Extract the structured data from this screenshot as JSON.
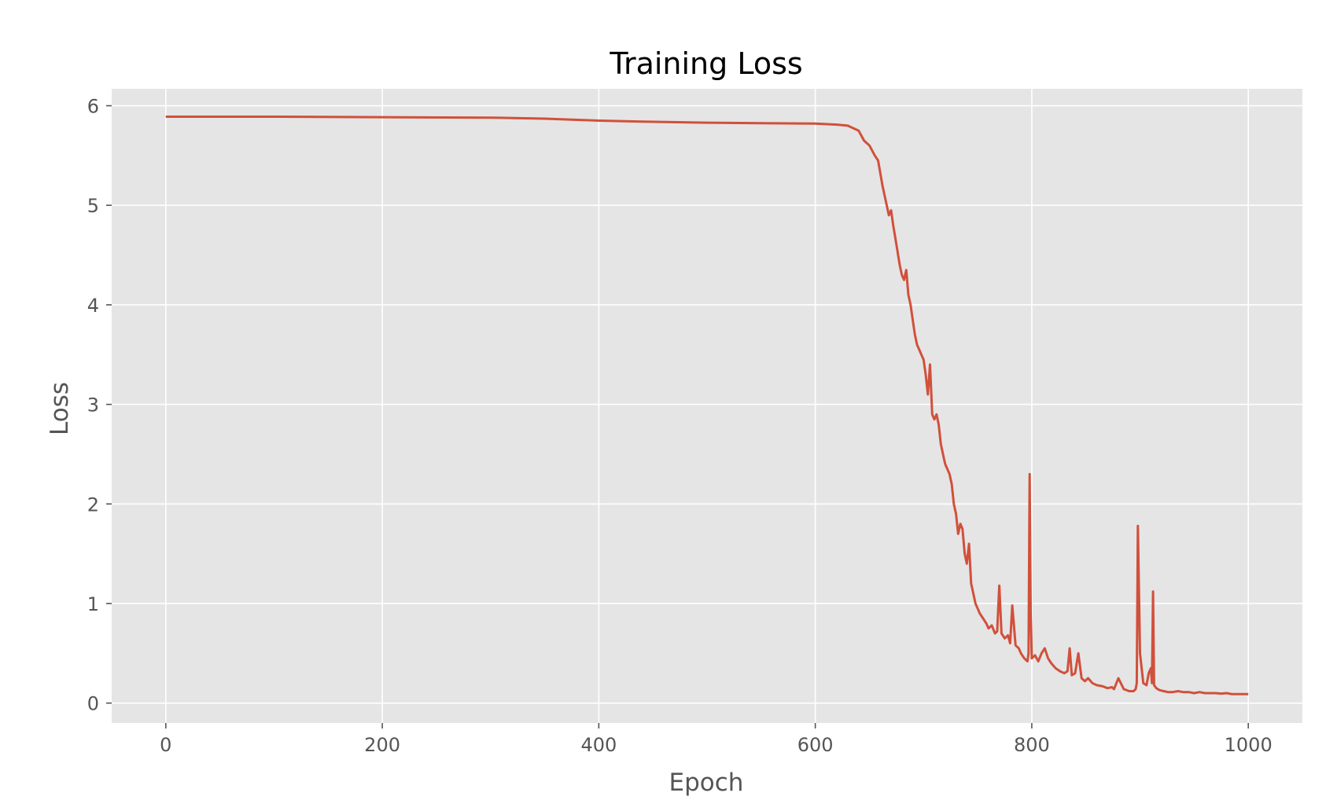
{
  "chart_data": {
    "type": "line",
    "title": "Training Loss",
    "xlabel": "Epoch",
    "ylabel": "Loss",
    "xlim": [
      -50,
      1050
    ],
    "ylim": [
      -0.2,
      6.17
    ],
    "xticks": [
      0,
      200,
      400,
      600,
      800,
      1000
    ],
    "yticks": [
      0,
      1,
      2,
      3,
      4,
      5,
      6
    ],
    "grid": true,
    "style": "ggplot",
    "colors": {
      "line": "#d1503b",
      "background": "#e5e5e5",
      "grid": "#ffffff"
    },
    "series": [
      {
        "x": [
          0,
          100,
          200,
          300,
          350,
          400,
          440,
          500,
          550,
          600,
          620,
          630,
          640,
          645,
          650,
          655,
          658,
          662,
          665,
          668,
          670,
          672,
          675,
          678,
          680,
          682,
          684,
          686,
          688,
          690,
          692,
          694,
          696,
          698,
          700,
          702,
          704,
          706,
          708,
          710,
          712,
          714,
          716,
          718,
          720,
          722,
          724,
          726,
          728,
          730,
          732,
          734,
          736,
          738,
          740,
          742,
          744,
          746,
          748,
          750,
          752,
          755,
          758,
          760,
          763,
          766,
          768,
          770,
          772,
          775,
          778,
          780,
          782,
          785,
          788,
          790,
          793,
          796,
          797,
          798,
          799,
          800,
          803,
          806,
          809,
          812,
          815,
          818,
          822,
          826,
          830,
          833,
          835,
          837,
          840,
          843,
          846,
          849,
          852,
          856,
          860,
          865,
          870,
          874,
          876,
          880,
          885,
          890,
          894,
          896,
          897,
          898,
          900,
          903,
          906,
          908,
          910,
          911,
          912,
          913,
          915,
          918,
          922,
          926,
          930,
          935,
          940,
          945,
          950,
          955,
          960,
          965,
          970,
          975,
          980,
          985,
          990,
          995,
          1000
        ],
        "y": [
          5.89,
          5.89,
          5.885,
          5.88,
          5.87,
          5.85,
          5.84,
          5.83,
          5.825,
          5.82,
          5.81,
          5.8,
          5.75,
          5.65,
          5.6,
          5.5,
          5.45,
          5.2,
          5.05,
          4.9,
          4.95,
          4.8,
          4.6,
          4.4,
          4.3,
          4.25,
          4.35,
          4.1,
          4.0,
          3.85,
          3.7,
          3.6,
          3.55,
          3.5,
          3.45,
          3.3,
          3.1,
          3.4,
          2.9,
          2.85,
          2.9,
          2.8,
          2.6,
          2.5,
          2.4,
          2.35,
          2.3,
          2.2,
          2.0,
          1.9,
          1.7,
          1.8,
          1.75,
          1.5,
          1.4,
          1.6,
          1.2,
          1.1,
          1.0,
          0.95,
          0.9,
          0.85,
          0.8,
          0.75,
          0.78,
          0.7,
          0.72,
          1.18,
          0.7,
          0.65,
          0.68,
          0.6,
          0.98,
          0.58,
          0.55,
          0.5,
          0.45,
          0.42,
          0.5,
          2.3,
          0.9,
          0.45,
          0.48,
          0.42,
          0.5,
          0.55,
          0.45,
          0.4,
          0.35,
          0.32,
          0.3,
          0.32,
          0.55,
          0.28,
          0.3,
          0.5,
          0.25,
          0.22,
          0.25,
          0.2,
          0.18,
          0.17,
          0.15,
          0.16,
          0.14,
          0.25,
          0.14,
          0.12,
          0.12,
          0.14,
          0.2,
          1.78,
          0.5,
          0.2,
          0.18,
          0.3,
          0.35,
          0.2,
          1.12,
          0.18,
          0.15,
          0.13,
          0.12,
          0.11,
          0.11,
          0.12,
          0.11,
          0.11,
          0.1,
          0.11,
          0.1,
          0.1,
          0.1,
          0.095,
          0.1,
          0.09,
          0.09,
          0.09,
          0.09
        ]
      }
    ]
  }
}
